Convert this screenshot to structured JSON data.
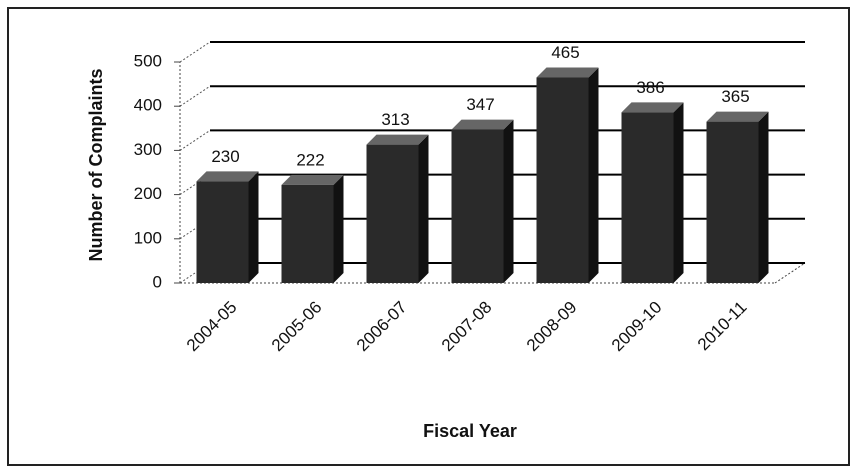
{
  "chart_data": {
    "type": "bar",
    "xlabel": "Fiscal Year",
    "ylabel": "Number of Complaints",
    "categories": [
      "2004-05",
      "2005-06",
      "2006-07",
      "2007-08",
      "2008-09",
      "2009-10",
      "2010-11"
    ],
    "values": [
      230,
      222,
      313,
      347,
      465,
      386,
      365
    ],
    "color": "#2a2a2a",
    "ylim": [
      0,
      500
    ],
    "yticks": [
      0,
      100,
      200,
      300,
      400,
      500
    ],
    "grid": true
  }
}
